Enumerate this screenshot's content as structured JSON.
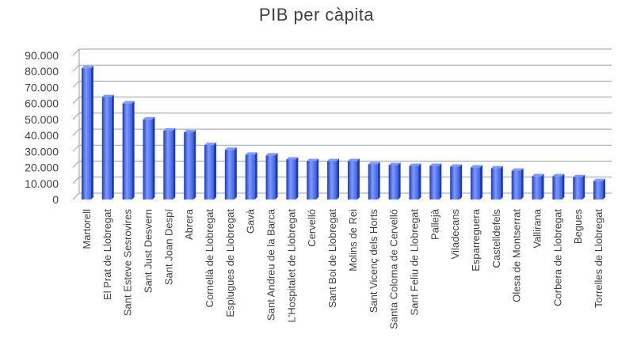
{
  "chart_data": {
    "type": "bar",
    "title": "PIB per càpita",
    "xlabel": "",
    "ylabel": "",
    "ylim": [
      0,
      90000
    ],
    "y_ticks": [
      "0",
      "10.000",
      "20.000",
      "30.000",
      "40.000",
      "50.000",
      "60.000",
      "70.000",
      "80.000",
      "90.000"
    ],
    "grid": true,
    "legend": "none",
    "categories": [
      "Martorell",
      "El Prat de Llobregat",
      "Sant Esteve Sesrovires",
      "Sant Just Desvern",
      "Sant Joan Despí",
      "Abrera",
      "Cornellà de Llobregat",
      "Esplugues de Llobregat",
      "Gavà",
      "Sant Andreu de la Barca",
      "L'Hospitalet de Llobregat",
      "Cervelló",
      "Sant Boi de Llobregat",
      "Molins de Rei",
      "Sant Vicenç dels Horts",
      "Santa Coloma de Cervelló",
      "Sant Feliu de Llobregat",
      "Pallejà",
      "Viladecans",
      "Esparreguera",
      "Castelldefels",
      "Olesa de Montserrat",
      "Vallirana",
      "Corbera de Llobregat",
      "Begues",
      "Torrelles de Llobregat"
    ],
    "values": [
      82000,
      64000,
      60000,
      50000,
      43000,
      42000,
      34000,
      31000,
      28000,
      27500,
      25000,
      24000,
      24000,
      24000,
      22000,
      21500,
      21000,
      21000,
      20500,
      20000,
      19500,
      18000,
      14500,
      14500,
      14000,
      11500
    ],
    "colors": {
      "bar": "#3a5fe6",
      "bar_light": "#7f9bff",
      "bar_dark": "#1f3bb5",
      "grid": "#9aa0aa",
      "text": "#404040"
    }
  }
}
